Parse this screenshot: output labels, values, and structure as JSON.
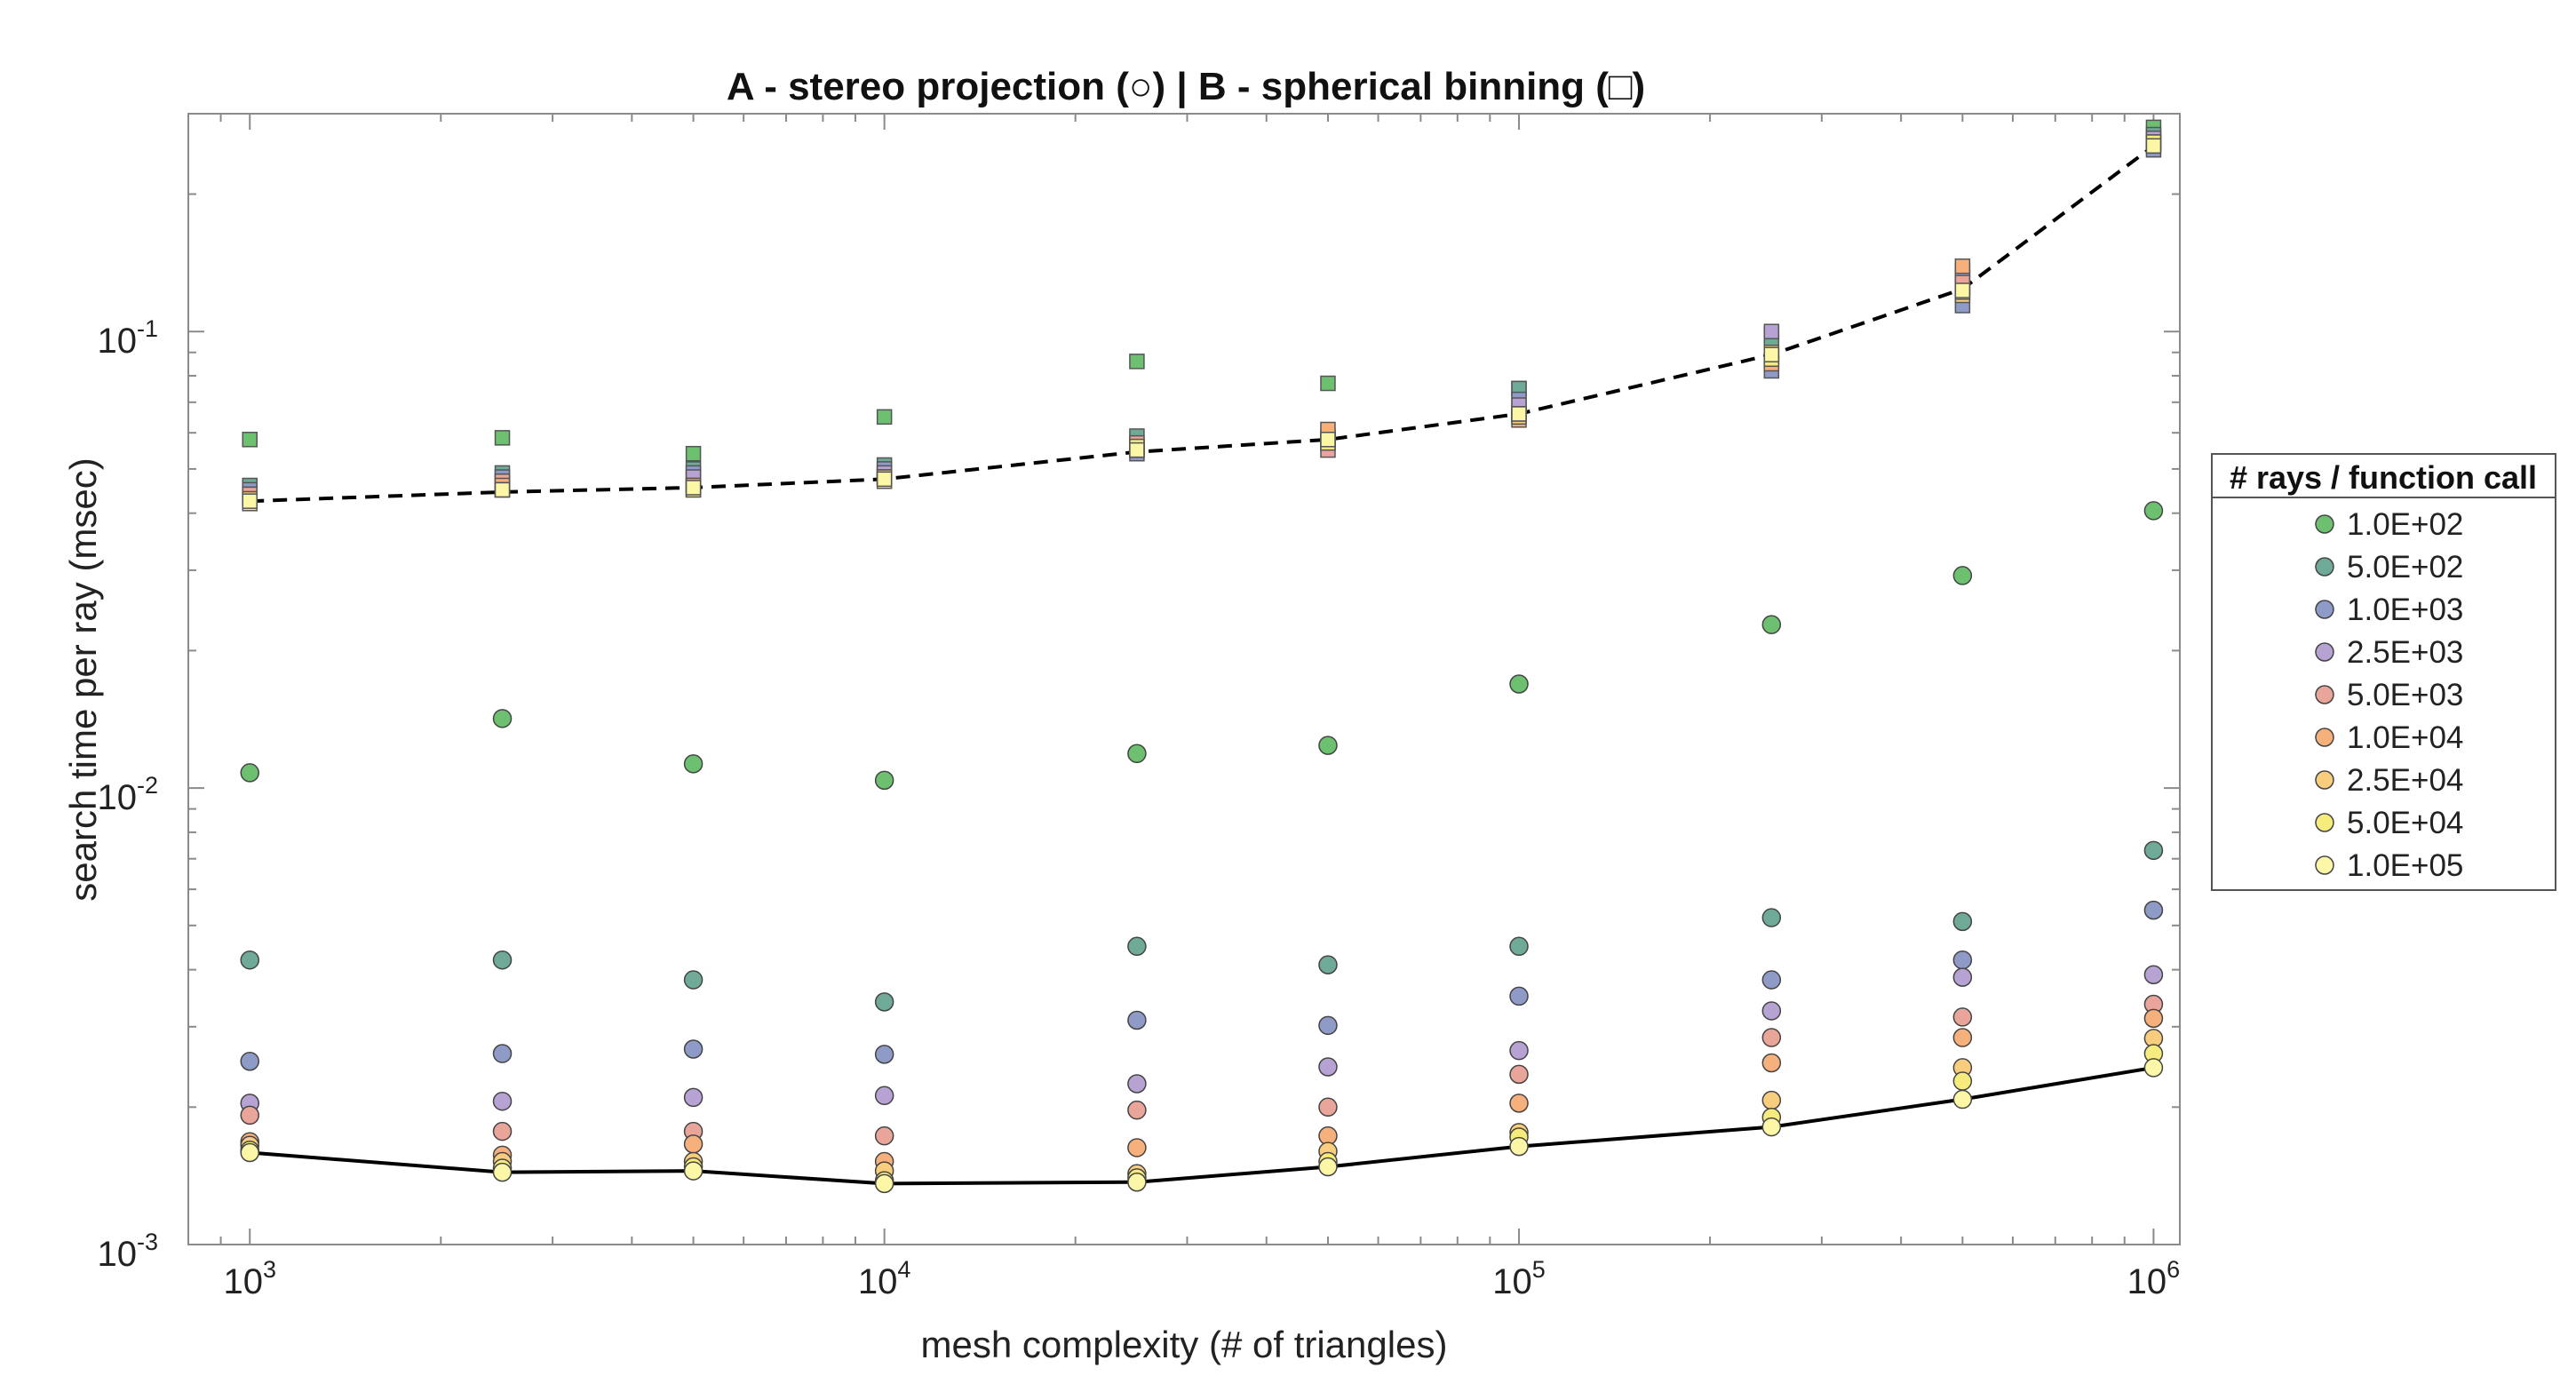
{
  "chart_data": {
    "type": "scatter",
    "title": "A - stereo projection (○) | B - spherical binning (□)",
    "xlabel": "mesh complexity (# of triangles)",
    "ylabel": "search time per ray (msec)",
    "xscale": "log",
    "yscale": "log",
    "xlim": [
      800,
      1100000
    ],
    "ylim": [
      0.001,
      0.3
    ],
    "x_ticks": [
      {
        "mantissa": "10",
        "exponent": "3"
      },
      {
        "mantissa": "10",
        "exponent": "4"
      },
      {
        "mantissa": "10",
        "exponent": "5"
      },
      {
        "mantissa": "10",
        "exponent": "6"
      }
    ],
    "y_ticks": [
      {
        "mantissa": "10",
        "exponent": "-3"
      },
      {
        "mantissa": "10",
        "exponent": "-2"
      },
      {
        "mantissa": "10",
        "exponent": "-1"
      }
    ],
    "x": [
      1000,
      2500,
      5000,
      10000,
      25000,
      50000,
      100000,
      250000,
      500000,
      1000000
    ],
    "legend": {
      "title": "# rays / function call",
      "position": "right"
    },
    "series_A_stereo_projection": [
      {
        "name": "1.0E+02",
        "color": "#6cc070",
        "values": [
          0.0108,
          0.0142,
          0.0113,
          0.0104,
          0.0119,
          0.0124,
          0.0169,
          0.0228,
          0.0292,
          0.0405
        ]
      },
      {
        "name": "5.0E+02",
        "color": "#6fa998",
        "values": [
          0.0042,
          0.0042,
          0.0038,
          0.0034,
          0.0045,
          0.0041,
          0.0045,
          0.0052,
          0.0051,
          0.0073
        ]
      },
      {
        "name": "1.0E+03",
        "color": "#8f9bc7",
        "values": [
          0.00252,
          0.00262,
          0.00268,
          0.00261,
          0.0031,
          0.00302,
          0.0035,
          0.0038,
          0.0042,
          0.0054
        ]
      },
      {
        "name": "2.5E+03",
        "color": "#b7a3d3",
        "values": [
          0.00204,
          0.00206,
          0.0021,
          0.00212,
          0.00225,
          0.00245,
          0.00266,
          0.00325,
          0.00385,
          0.0039
        ]
      },
      {
        "name": "5.0E+03",
        "color": "#e9a599",
        "values": [
          0.00192,
          0.00177,
          0.00177,
          0.00173,
          0.00197,
          0.002,
          0.00236,
          0.00284,
          0.00315,
          0.00336
        ]
      },
      {
        "name": "1.0E+04",
        "color": "#f6b07c",
        "values": [
          0.00168,
          0.00157,
          0.00166,
          0.00152,
          0.00163,
          0.00173,
          0.00204,
          0.0025,
          0.00284,
          0.00313
        ]
      },
      {
        "name": "2.5E+04",
        "color": "#f9cd7e",
        "values": [
          0.00165,
          0.00152,
          0.00152,
          0.00145,
          0.00143,
          0.0016,
          0.00176,
          0.00207,
          0.00244,
          0.00283
        ]
      },
      {
        "name": "5.0E+04",
        "color": "#f6ec7e",
        "values": [
          0.00161,
          0.00147,
          0.00148,
          0.00138,
          0.0014,
          0.00152,
          0.00172,
          0.0019,
          0.00228,
          0.00262
        ]
      },
      {
        "name": "1.0E+05",
        "color": "#fbf7a6",
        "values": [
          0.00159,
          0.00144,
          0.00145,
          0.00136,
          0.00137,
          0.00148,
          0.00164,
          0.00181,
          0.00208,
          0.00244
        ]
      }
    ],
    "series_B_spherical_binning": [
      {
        "name": "1.0E+02",
        "color": "#6cc070",
        "values": [
          0.058,
          0.0585,
          0.054,
          0.065,
          0.086,
          0.077,
          0.075,
          0.099,
          0.136,
          0.28
        ]
      },
      {
        "name": "5.0E+02",
        "color": "#6fa998",
        "values": [
          0.046,
          0.049,
          0.05,
          0.051,
          0.059,
          0.059,
          0.075,
          0.094,
          0.125,
          0.27
        ]
      },
      {
        "name": "1.0E+03",
        "color": "#8f9bc7",
        "values": [
          0.045,
          0.048,
          0.049,
          0.05,
          0.054,
          0.057,
          0.071,
          0.082,
          0.114,
          0.25
        ]
      },
      {
        "name": "2.5E+03",
        "color": "#b7a3d3",
        "values": [
          0.044,
          0.047,
          0.048,
          0.049,
          0.056,
          0.058,
          0.069,
          0.1,
          0.132,
          0.265
        ]
      },
      {
        "name": "5.0E+03",
        "color": "#e9a599",
        "values": [
          0.044,
          0.047,
          0.046,
          0.048,
          0.057,
          0.055,
          0.066,
          0.088,
          0.128,
          0.26
        ]
      },
      {
        "name": "1.0E+04",
        "color": "#f6b07c",
        "values": [
          0.043,
          0.046,
          0.046,
          0.048,
          0.055,
          0.061,
          0.064,
          0.085,
          0.139,
          0.255
        ]
      },
      {
        "name": "2.5E+04",
        "color": "#f9cd7e",
        "values": [
          0.043,
          0.045,
          0.045,
          0.048,
          0.055,
          0.058,
          0.065,
          0.09,
          0.12,
          0.258
        ]
      },
      {
        "name": "5.0E+04",
        "color": "#f6ec7e",
        "values": [
          0.042,
          0.045,
          0.045,
          0.047,
          0.056,
          0.057,
          0.066,
          0.087,
          0.122,
          0.26
        ]
      },
      {
        "name": "1.0E+05",
        "color": "#fbf7a6",
        "values": [
          0.0425,
          0.045,
          0.0455,
          0.0475,
          0.055,
          0.058,
          0.066,
          0.089,
          0.123,
          0.255
        ]
      }
    ],
    "trend_lines": [
      {
        "name": "B - spherical binning",
        "style": "dashed",
        "color": "#000000",
        "values": [
          0.0425,
          0.0445,
          0.0455,
          0.0475,
          0.0545,
          0.058,
          0.066,
          0.089,
          0.124,
          0.255
        ]
      },
      {
        "name": "A - stereo projection",
        "style": "solid",
        "color": "#000000",
        "values": [
          0.00159,
          0.00144,
          0.00145,
          0.00136,
          0.00137,
          0.00148,
          0.00164,
          0.00181,
          0.00208,
          0.00244
        ]
      }
    ]
  }
}
